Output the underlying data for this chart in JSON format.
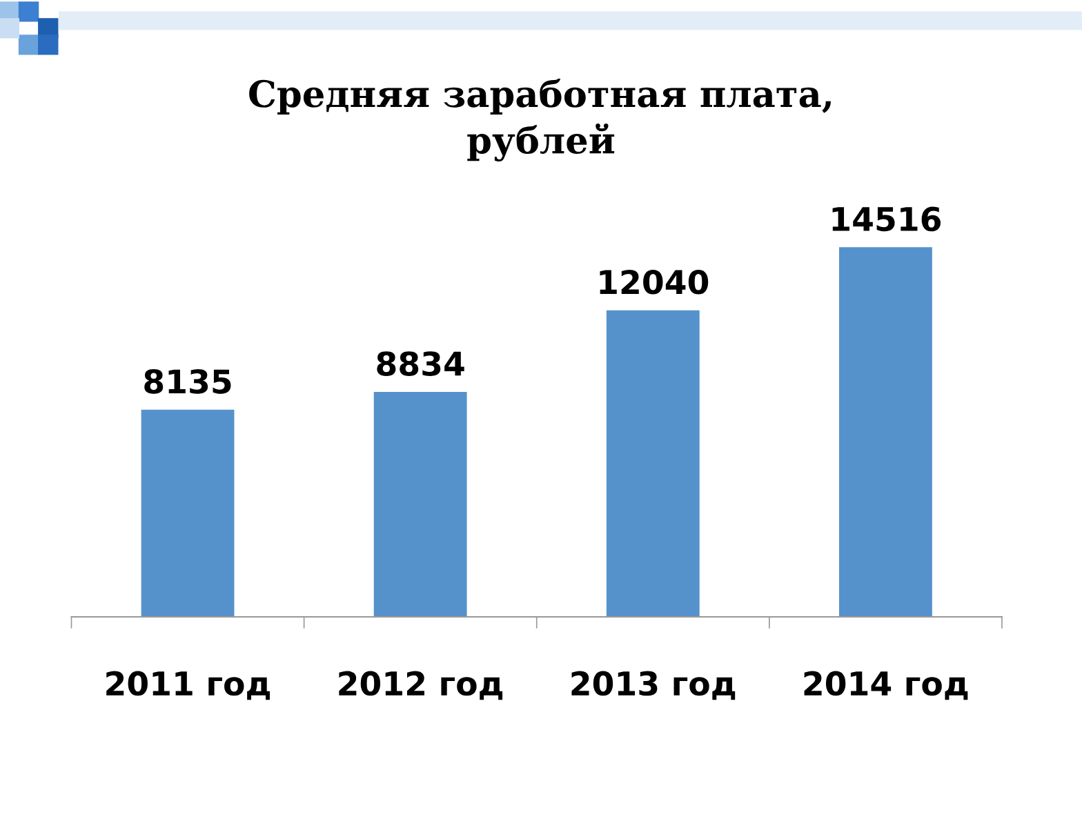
{
  "chart_data": {
    "type": "bar",
    "title": "Средняя заработная плата,\nрублей",
    "categories": [
      "2011 год",
      "2012 год",
      "2013 год",
      "2014 год"
    ],
    "values": [
      8135,
      8834,
      12040,
      14516
    ],
    "color": "#5592cc",
    "data_labels": true,
    "grid": false,
    "legend": false
  }
}
